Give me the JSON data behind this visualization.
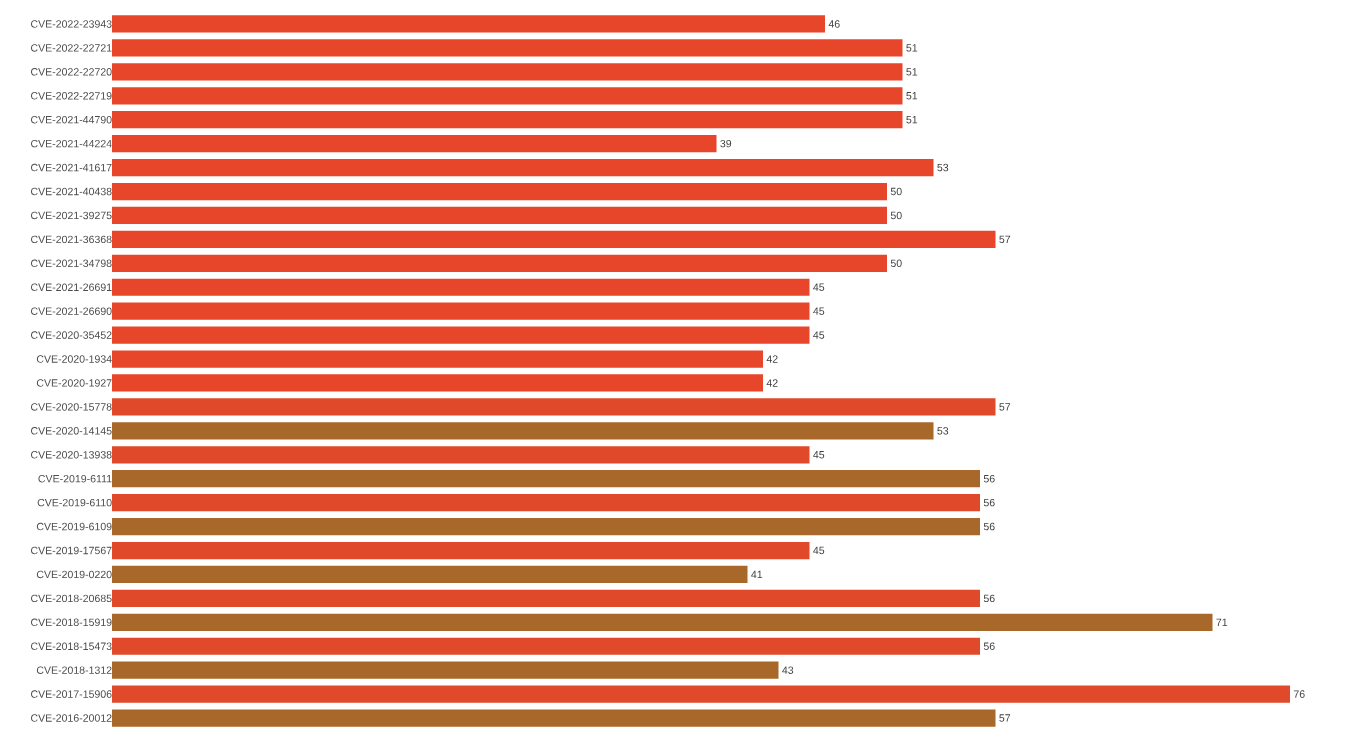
{
  "chart_data": {
    "type": "bar",
    "orientation": "horizontal",
    "data_labels": true,
    "categories": [
      "CVE-2022-23943",
      "CVE-2022-22721",
      "CVE-2022-22720",
      "CVE-2022-22719",
      "CVE-2021-44790",
      "CVE-2021-44224",
      "CVE-2021-41617",
      "CVE-2021-40438",
      "CVE-2021-39275",
      "CVE-2021-36368",
      "CVE-2021-34798",
      "CVE-2021-26691",
      "CVE-2021-26690",
      "CVE-2020-35452",
      "CVE-2020-1934",
      "CVE-2020-1927",
      "CVE-2020-15778",
      "CVE-2020-14145",
      "CVE-2020-13938",
      "CVE-2019-6111",
      "CVE-2019-6110",
      "CVE-2019-6109",
      "CVE-2019-17567",
      "CVE-2019-0220",
      "CVE-2018-20685",
      "CVE-2018-15919",
      "CVE-2018-15473",
      "CVE-2018-1312",
      "CVE-2017-15906",
      "CVE-2016-20012"
    ],
    "values": [
      46,
      51,
      51,
      51,
      51,
      39,
      53,
      50,
      50,
      57,
      50,
      45,
      45,
      45,
      42,
      42,
      57,
      53,
      45,
      56,
      56,
      56,
      45,
      41,
      56,
      71,
      56,
      43,
      76,
      57
    ],
    "colors": [
      "#e8462a",
      "#e8462a",
      "#e8462a",
      "#e8462a",
      "#e8462a",
      "#e8462a",
      "#e8462a",
      "#e8462a",
      "#e8462a",
      "#e8462a",
      "#e8462a",
      "#e8462a",
      "#e8462a",
      "#e8462a",
      "#e8462a",
      "#e8462a",
      "#e04a2a",
      "#a8682a",
      "#e04a2a",
      "#a8682a",
      "#e04a2a",
      "#a8682a",
      "#e04a2a",
      "#a8682a",
      "#e04a2a",
      "#a8682a",
      "#e04a2a",
      "#a8682a",
      "#e04a2a",
      "#a8682a"
    ]
  }
}
